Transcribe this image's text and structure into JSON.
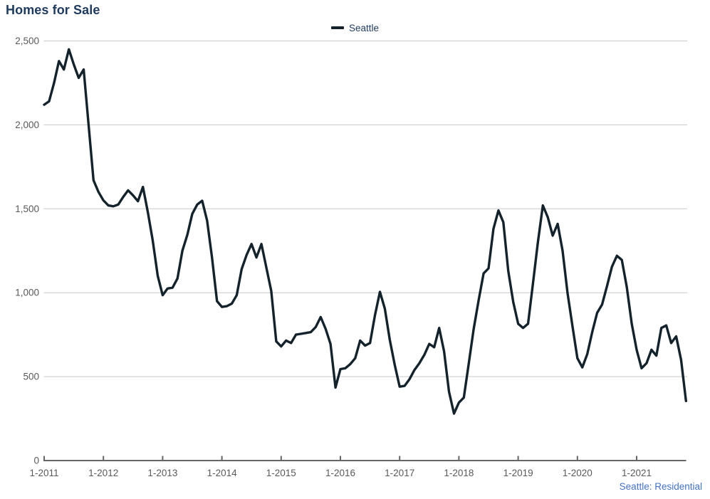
{
  "page": {
    "title": "Homes for Sale",
    "footer_link": "Seattle: Residential"
  },
  "legend": {
    "items": [
      {
        "label": "Seattle",
        "color": "#14222c"
      }
    ]
  },
  "colors": {
    "background": "#ffffff",
    "title_text": "#1e3a5e",
    "legend_text": "#1e3a5e",
    "axis_text": "#595959",
    "gridline": "#c9c9c9",
    "axis_line": "#666666",
    "series_line": "#14222c",
    "footer_link": "#4472c4"
  },
  "chart_data": {
    "type": "line",
    "title": "Homes for Sale",
    "xlabel": "",
    "ylabel": "",
    "grid": "horizontal-only",
    "legend_position": "top-center",
    "ylim": [
      0,
      2500
    ],
    "y_ticks": [
      0,
      500,
      1000,
      1500,
      2000,
      2500
    ],
    "x_tick_labels": [
      "1-2011",
      "1-2012",
      "1-2013",
      "1-2014",
      "1-2015",
      "1-2016",
      "1-2017",
      "1-2018",
      "1-2019",
      "1-2020",
      "1-2021"
    ],
    "series": [
      {
        "name": "Seattle",
        "color": "#14222c",
        "start_month": "2011-01",
        "frequency": "monthly",
        "values": [
          2120,
          2140,
          2250,
          2380,
          2330,
          2450,
          2360,
          2280,
          2330,
          2000,
          1670,
          1600,
          1550,
          1520,
          1515,
          1525,
          1570,
          1610,
          1580,
          1545,
          1630,
          1480,
          1310,
          1100,
          985,
          1025,
          1030,
          1085,
          1250,
          1345,
          1470,
          1525,
          1548,
          1430,
          1210,
          950,
          915,
          920,
          935,
          985,
          1140,
          1225,
          1290,
          1210,
          1290,
          1150,
          1010,
          710,
          680,
          715,
          700,
          750,
          755,
          760,
          765,
          795,
          855,
          785,
          695,
          435,
          545,
          550,
          575,
          610,
          715,
          685,
          700,
          865,
          1005,
          905,
          720,
          570,
          440,
          445,
          485,
          540,
          580,
          630,
          695,
          675,
          790,
          650,
          410,
          280,
          345,
          375,
          580,
          785,
          955,
          1115,
          1145,
          1380,
          1490,
          1420,
          1130,
          945,
          815,
          790,
          815,
          1055,
          1300,
          1520,
          1450,
          1340,
          1410,
          1250,
          1000,
          800,
          610,
          555,
          635,
          765,
          880,
          930,
          1040,
          1155,
          1220,
          1195,
          1035,
          815,
          660,
          550,
          580,
          660,
          625,
          790,
          805,
          700,
          740,
          600,
          355
        ]
      }
    ]
  }
}
